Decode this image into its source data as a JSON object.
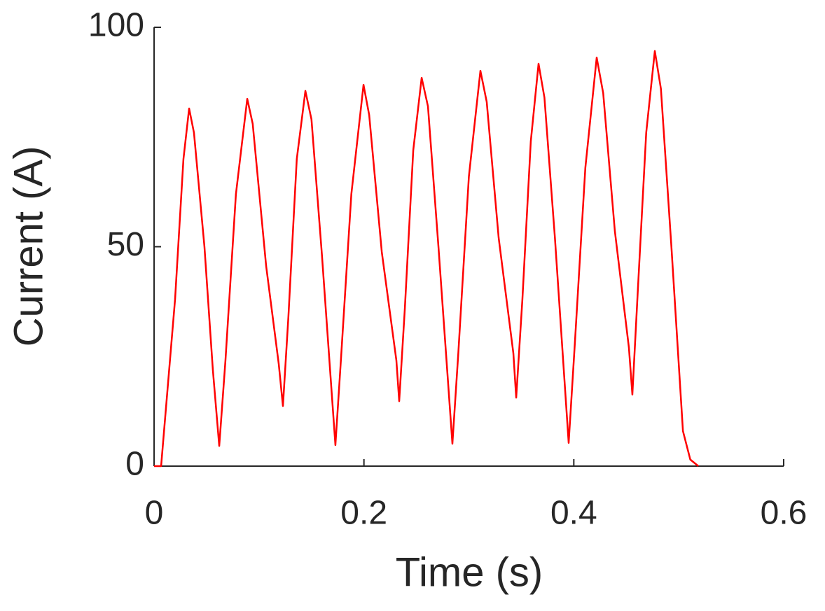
{
  "chart_data": {
    "type": "line",
    "x_label": "Time (s)",
    "y_label": "Current (A)",
    "x": [
      0,
      0.0067,
      0.02,
      0.028,
      0.0334,
      0.038,
      0.048,
      0.056,
      0.0621,
      0.068,
      0.078,
      0.0888,
      0.094,
      0.1068,
      0.1188,
      0.1228,
      0.128,
      0.136,
      0.1442,
      0.15,
      0.16,
      0.1728,
      0.178,
      0.188,
      0.1996,
      0.205,
      0.217,
      0.2309,
      0.2336,
      0.239,
      0.247,
      0.255,
      0.261,
      0.271,
      0.2843,
      0.29,
      0.3,
      0.311,
      0.317,
      0.3284,
      0.3424,
      0.3451,
      0.351,
      0.359,
      0.3664,
      0.372,
      0.382,
      0.3951,
      0.401,
      0.411,
      0.4218,
      0.428,
      0.4391,
      0.4525,
      0.4558,
      0.461,
      0.469,
      0.4772,
      0.483,
      0.493,
      0.504,
      0.511,
      0.5187
    ],
    "series": [
      {
        "color": "#ff0000",
        "values": [
          0,
          0,
          38,
          70,
          81.5,
          76,
          50,
          22,
          4.6,
          24,
          62,
          83.7,
          78,
          45.6,
          23.3,
          13.7,
          34,
          70,
          85.5,
          79,
          48,
          4.8,
          24,
          62,
          86.9,
          80,
          48.8,
          24.1,
          14.8,
          36,
          72,
          88.5,
          82,
          50,
          5.1,
          26,
          66,
          90.1,
          83,
          52,
          25.7,
          15.6,
          38,
          74,
          91.7,
          84,
          52,
          5.3,
          28,
          68,
          93.1,
          85,
          53.6,
          27,
          16.3,
          40,
          76,
          94.6,
          86,
          50,
          8,
          1.5,
          0
        ]
      }
    ],
    "xlim": [
      0,
      0.6
    ],
    "xticks": [
      0,
      0.2,
      0.4,
      0.6
    ],
    "ylim": [
      0,
      100
    ],
    "yticks": [
      0,
      50,
      100
    ]
  }
}
